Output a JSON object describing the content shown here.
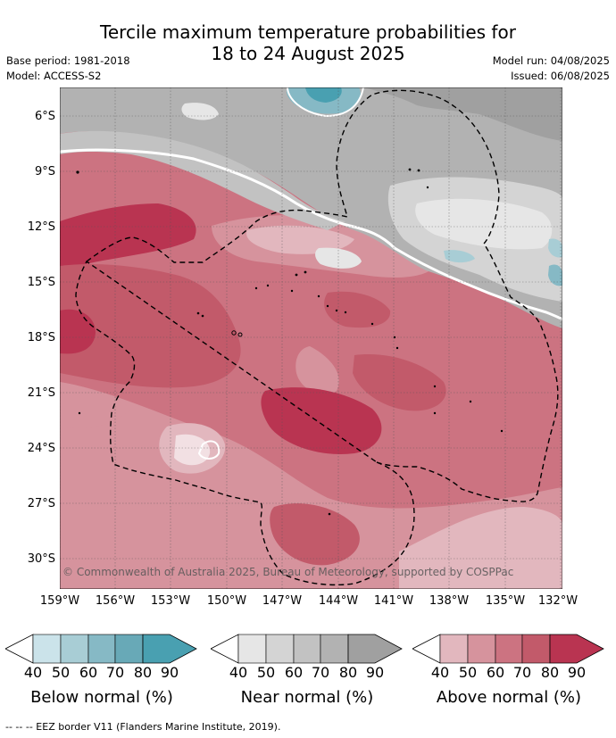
{
  "title": {
    "line1": "Tercile maximum temperature probabilities for",
    "line2": "18 to 24 August 2025"
  },
  "meta": {
    "base_period": "Base period: 1981-2018",
    "model": "Model: ACCESS-S2",
    "model_run": "Model run: 04/08/2025",
    "issued": "Issued: 06/08/2025"
  },
  "map": {
    "copyright": "© Commonwealth of Australia 2025, Bureau of Meteorology, supported by COSPPac",
    "lat_labels": [
      "6°S",
      "9°S",
      "12°S",
      "15°S",
      "18°S",
      "21°S",
      "24°S",
      "27°S",
      "30°S"
    ],
    "lon_labels": [
      "159°W",
      "156°W",
      "153°W",
      "150°W",
      "147°W",
      "144°W",
      "141°W",
      "138°W",
      "135°W",
      "132°W"
    ],
    "lon_range": [
      -159,
      -132
    ],
    "lat_range": [
      -4.5,
      -31.5
    ]
  },
  "colorbars": [
    {
      "title": "Below normal (%)",
      "ticks": [
        "40",
        "50",
        "60",
        "70",
        "80",
        "90"
      ],
      "colors": [
        "#ffffff",
        "#cbe3ea",
        "#a8cdd5",
        "#86b9c5",
        "#68a9b7",
        "#49a0b1"
      ]
    },
    {
      "title": "Near normal (%)",
      "ticks": [
        "40",
        "50",
        "60",
        "70",
        "80",
        "90"
      ],
      "colors": [
        "#ffffff",
        "#e6e6e6",
        "#d4d4d4",
        "#c2c2c2",
        "#b2b2b2",
        "#a0a0a0"
      ]
    },
    {
      "title": "Above normal (%)",
      "ticks": [
        "40",
        "50",
        "60",
        "70",
        "80",
        "90"
      ],
      "colors": [
        "#ffffff",
        "#e2b7be",
        "#d6939d",
        "#cc7381",
        "#c25a6a",
        "#b93451"
      ]
    }
  ],
  "footnote": "--  --  -- EEZ border V11 (Flanders Marine Institute, 2019)."
}
